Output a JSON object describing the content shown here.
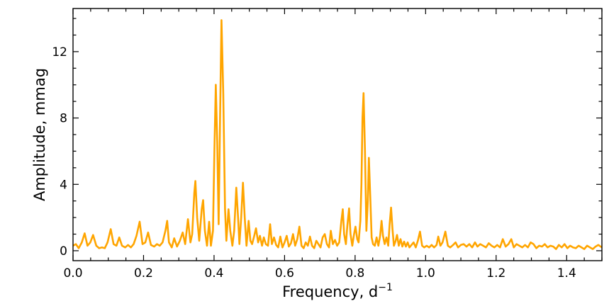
{
  "chart_data": {
    "type": "line",
    "xlabel": "Frequency, d",
    "xlabel_superscript": "−1",
    "ylabel": "Amplitude, mmag",
    "xlim": [
      0.0,
      1.5
    ],
    "ylim": [
      -0.6,
      14.6
    ],
    "x_ticks": [
      0.0,
      0.2,
      0.4,
      0.6,
      0.8,
      1.0,
      1.2,
      1.4
    ],
    "x_tick_labels": [
      "0.0",
      "0.2",
      "0.4",
      "0.6",
      "0.8",
      "1.0",
      "1.2",
      "1.4"
    ],
    "y_ticks": [
      0,
      4,
      8,
      12
    ],
    "y_tick_labels": [
      "0",
      "4",
      "8",
      "12"
    ],
    "grid": false,
    "line_color": "#FFA500",
    "series": [
      {
        "points": [
          [
            0.0,
            0.3
          ],
          [
            0.008,
            0.4
          ],
          [
            0.016,
            0.15
          ],
          [
            0.025,
            0.5
          ],
          [
            0.033,
            1.05
          ],
          [
            0.041,
            0.3
          ],
          [
            0.049,
            0.5
          ],
          [
            0.057,
            0.95
          ],
          [
            0.066,
            0.3
          ],
          [
            0.074,
            0.15
          ],
          [
            0.082,
            0.2
          ],
          [
            0.09,
            0.15
          ],
          [
            0.098,
            0.5
          ],
          [
            0.107,
            1.3
          ],
          [
            0.115,
            0.4
          ],
          [
            0.123,
            0.3
          ],
          [
            0.131,
            0.8
          ],
          [
            0.139,
            0.3
          ],
          [
            0.148,
            0.2
          ],
          [
            0.156,
            0.35
          ],
          [
            0.164,
            0.2
          ],
          [
            0.172,
            0.4
          ],
          [
            0.18,
            0.9
          ],
          [
            0.189,
            1.75
          ],
          [
            0.197,
            0.4
          ],
          [
            0.205,
            0.5
          ],
          [
            0.213,
            1.1
          ],
          [
            0.221,
            0.35
          ],
          [
            0.23,
            0.25
          ],
          [
            0.238,
            0.4
          ],
          [
            0.246,
            0.3
          ],
          [
            0.254,
            0.5
          ],
          [
            0.262,
            1.2
          ],
          [
            0.267,
            1.8
          ],
          [
            0.272,
            0.5
          ],
          [
            0.28,
            0.2
          ],
          [
            0.287,
            0.75
          ],
          [
            0.295,
            0.25
          ],
          [
            0.303,
            0.6
          ],
          [
            0.311,
            1.1
          ],
          [
            0.318,
            0.4
          ],
          [
            0.326,
            1.9
          ],
          [
            0.333,
            0.5
          ],
          [
            0.338,
            1.0
          ],
          [
            0.344,
            3.5
          ],
          [
            0.347,
            4.2
          ],
          [
            0.352,
            2.0
          ],
          [
            0.358,
            0.6
          ],
          [
            0.365,
            2.5
          ],
          [
            0.369,
            3.05
          ],
          [
            0.374,
            1.2
          ],
          [
            0.38,
            0.3
          ],
          [
            0.386,
            1.75
          ],
          [
            0.391,
            0.3
          ],
          [
            0.397,
            1.2
          ],
          [
            0.401,
            6.0
          ],
          [
            0.405,
            10.0
          ],
          [
            0.409,
            6.5
          ],
          [
            0.413,
            1.6
          ],
          [
            0.417,
            8.0
          ],
          [
            0.421,
            13.9
          ],
          [
            0.426,
            9.5
          ],
          [
            0.431,
            2.5
          ],
          [
            0.435,
            0.6
          ],
          [
            0.441,
            2.5
          ],
          [
            0.446,
            1.2
          ],
          [
            0.452,
            0.3
          ],
          [
            0.457,
            1.2
          ],
          [
            0.463,
            3.8
          ],
          [
            0.468,
            2.0
          ],
          [
            0.472,
            0.4
          ],
          [
            0.477,
            2.0
          ],
          [
            0.482,
            4.1
          ],
          [
            0.487,
            2.0
          ],
          [
            0.492,
            0.3
          ],
          [
            0.498,
            1.8
          ],
          [
            0.503,
            0.6
          ],
          [
            0.508,
            0.4
          ],
          [
            0.514,
            0.9
          ],
          [
            0.519,
            1.35
          ],
          [
            0.525,
            0.5
          ],
          [
            0.53,
            0.9
          ],
          [
            0.536,
            0.3
          ],
          [
            0.541,
            0.8
          ],
          [
            0.547,
            0.4
          ],
          [
            0.553,
            0.3
          ],
          [
            0.559,
            1.6
          ],
          [
            0.564,
            0.4
          ],
          [
            0.57,
            0.8
          ],
          [
            0.576,
            0.35
          ],
          [
            0.582,
            0.2
          ],
          [
            0.588,
            0.85
          ],
          [
            0.594,
            0.2
          ],
          [
            0.6,
            0.5
          ],
          [
            0.606,
            0.9
          ],
          [
            0.612,
            0.25
          ],
          [
            0.618,
            0.45
          ],
          [
            0.624,
            1.0
          ],
          [
            0.63,
            0.3
          ],
          [
            0.636,
            0.7
          ],
          [
            0.642,
            1.45
          ],
          [
            0.648,
            0.3
          ],
          [
            0.654,
            0.15
          ],
          [
            0.66,
            0.5
          ],
          [
            0.666,
            0.3
          ],
          [
            0.672,
            0.85
          ],
          [
            0.678,
            0.3
          ],
          [
            0.684,
            0.15
          ],
          [
            0.69,
            0.6
          ],
          [
            0.696,
            0.4
          ],
          [
            0.702,
            0.2
          ],
          [
            0.708,
            0.8
          ],
          [
            0.714,
            1.0
          ],
          [
            0.72,
            0.4
          ],
          [
            0.726,
            0.2
          ],
          [
            0.731,
            1.2
          ],
          [
            0.737,
            0.4
          ],
          [
            0.743,
            0.65
          ],
          [
            0.749,
            0.3
          ],
          [
            0.755,
            0.5
          ],
          [
            0.761,
            1.8
          ],
          [
            0.765,
            2.5
          ],
          [
            0.769,
            1.0
          ],
          [
            0.774,
            0.4
          ],
          [
            0.778,
            1.5
          ],
          [
            0.783,
            2.55
          ],
          [
            0.787,
            1.0
          ],
          [
            0.792,
            0.3
          ],
          [
            0.797,
            1.0
          ],
          [
            0.801,
            1.45
          ],
          [
            0.806,
            0.7
          ],
          [
            0.81,
            0.5
          ],
          [
            0.815,
            1.8
          ],
          [
            0.818,
            4.0
          ],
          [
            0.821,
            8.0
          ],
          [
            0.824,
            9.5
          ],
          [
            0.828,
            6.0
          ],
          [
            0.832,
            1.2
          ],
          [
            0.836,
            3.0
          ],
          [
            0.839,
            5.6
          ],
          [
            0.843,
            3.2
          ],
          [
            0.847,
            0.8
          ],
          [
            0.851,
            0.4
          ],
          [
            0.856,
            0.3
          ],
          [
            0.861,
            0.8
          ],
          [
            0.866,
            0.3
          ],
          [
            0.871,
            0.9
          ],
          [
            0.875,
            1.8
          ],
          [
            0.879,
            0.9
          ],
          [
            0.884,
            0.4
          ],
          [
            0.889,
            0.8
          ],
          [
            0.894,
            0.3
          ],
          [
            0.898,
            1.6
          ],
          [
            0.902,
            2.6
          ],
          [
            0.906,
            1.3
          ],
          [
            0.91,
            0.3
          ],
          [
            0.915,
            0.6
          ],
          [
            0.919,
            0.95
          ],
          [
            0.924,
            0.3
          ],
          [
            0.929,
            0.7
          ],
          [
            0.934,
            0.25
          ],
          [
            0.939,
            0.55
          ],
          [
            0.944,
            0.25
          ],
          [
            0.949,
            0.5
          ],
          [
            0.954,
            0.2
          ],
          [
            0.96,
            0.35
          ],
          [
            0.966,
            0.5
          ],
          [
            0.972,
            0.2
          ],
          [
            0.978,
            0.6
          ],
          [
            0.984,
            1.15
          ],
          [
            0.99,
            0.3
          ],
          [
            0.996,
            0.2
          ],
          [
            1.003,
            0.3
          ],
          [
            1.01,
            0.2
          ],
          [
            1.017,
            0.35
          ],
          [
            1.024,
            0.2
          ],
          [
            1.031,
            0.35
          ],
          [
            1.036,
            0.85
          ],
          [
            1.042,
            0.3
          ],
          [
            1.048,
            0.5
          ],
          [
            1.056,
            1.15
          ],
          [
            1.063,
            0.3
          ],
          [
            1.07,
            0.2
          ],
          [
            1.078,
            0.35
          ],
          [
            1.085,
            0.5
          ],
          [
            1.092,
            0.2
          ],
          [
            1.1,
            0.35
          ],
          [
            1.108,
            0.4
          ],
          [
            1.116,
            0.25
          ],
          [
            1.124,
            0.4
          ],
          [
            1.132,
            0.2
          ],
          [
            1.14,
            0.5
          ],
          [
            1.147,
            0.25
          ],
          [
            1.155,
            0.4
          ],
          [
            1.163,
            0.3
          ],
          [
            1.171,
            0.2
          ],
          [
            1.179,
            0.45
          ],
          [
            1.187,
            0.3
          ],
          [
            1.195,
            0.2
          ],
          [
            1.203,
            0.35
          ],
          [
            1.211,
            0.2
          ],
          [
            1.219,
            0.7
          ],
          [
            1.227,
            0.25
          ],
          [
            1.235,
            0.4
          ],
          [
            1.243,
            0.7
          ],
          [
            1.25,
            0.2
          ],
          [
            1.258,
            0.4
          ],
          [
            1.266,
            0.3
          ],
          [
            1.274,
            0.2
          ],
          [
            1.282,
            0.35
          ],
          [
            1.29,
            0.2
          ],
          [
            1.298,
            0.5
          ],
          [
            1.306,
            0.4
          ],
          [
            1.314,
            0.15
          ],
          [
            1.322,
            0.3
          ],
          [
            1.33,
            0.25
          ],
          [
            1.338,
            0.4
          ],
          [
            1.346,
            0.2
          ],
          [
            1.354,
            0.3
          ],
          [
            1.362,
            0.25
          ],
          [
            1.37,
            0.1
          ],
          [
            1.378,
            0.35
          ],
          [
            1.386,
            0.2
          ],
          [
            1.394,
            0.4
          ],
          [
            1.402,
            0.15
          ],
          [
            1.41,
            0.3
          ],
          [
            1.418,
            0.2
          ],
          [
            1.426,
            0.15
          ],
          [
            1.434,
            0.3
          ],
          [
            1.442,
            0.2
          ],
          [
            1.45,
            0.1
          ],
          [
            1.458,
            0.3
          ],
          [
            1.466,
            0.2
          ],
          [
            1.474,
            0.1
          ],
          [
            1.482,
            0.25
          ],
          [
            1.49,
            0.35
          ],
          [
            1.5,
            0.2
          ]
        ]
      }
    ]
  }
}
